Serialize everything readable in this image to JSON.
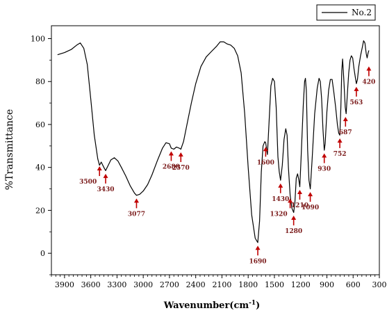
{
  "chart_data": {
    "type": "line",
    "xlabel": "Wavenumber(cm",
    "xlabel_sup": "-1",
    "xlabel_close": ")",
    "ylabel": "%Transmittance",
    "xlim": [
      4050,
      300
    ],
    "ylim": [
      -10,
      106
    ],
    "x_reversed": true,
    "x_ticks": [
      3900,
      3600,
      3300,
      3000,
      2700,
      2400,
      2100,
      1800,
      1500,
      1200,
      900,
      600,
      300
    ],
    "y_ticks": [
      0,
      20,
      40,
      60,
      80,
      100
    ],
    "grid": false,
    "legend": {
      "placement": "top-right",
      "entries": [
        "No.2"
      ]
    },
    "series": [
      {
        "name": "No.2",
        "color": "#000000",
        "points": [
          [
            3980,
            92.5
          ],
          [
            3900,
            93.5
          ],
          [
            3820,
            95
          ],
          [
            3760,
            97
          ],
          [
            3720,
            98
          ],
          [
            3680,
            95.5
          ],
          [
            3640,
            88
          ],
          [
            3600,
            72
          ],
          [
            3560,
            55
          ],
          [
            3520,
            44
          ],
          [
            3500,
            41
          ],
          [
            3480,
            42.5
          ],
          [
            3450,
            40
          ],
          [
            3430,
            38.5
          ],
          [
            3400,
            41
          ],
          [
            3370,
            43.5
          ],
          [
            3330,
            44.5
          ],
          [
            3290,
            43
          ],
          [
            3250,
            40
          ],
          [
            3200,
            36
          ],
          [
            3150,
            31.5
          ],
          [
            3100,
            28
          ],
          [
            3077,
            27
          ],
          [
            3040,
            27.5
          ],
          [
            3000,
            29
          ],
          [
            2950,
            32
          ],
          [
            2900,
            36.5
          ],
          [
            2840,
            43
          ],
          [
            2780,
            49
          ],
          [
            2740,
            51.5
          ],
          [
            2700,
            51
          ],
          [
            2680,
            49
          ],
          [
            2650,
            48.5
          ],
          [
            2620,
            49.5
          ],
          [
            2590,
            49
          ],
          [
            2570,
            48.5
          ],
          [
            2540,
            52
          ],
          [
            2500,
            60
          ],
          [
            2450,
            70
          ],
          [
            2400,
            79
          ],
          [
            2340,
            87
          ],
          [
            2280,
            91.5
          ],
          [
            2220,
            94
          ],
          [
            2160,
            96.5
          ],
          [
            2120,
            98.5
          ],
          [
            2080,
            98.5
          ],
          [
            2040,
            97.5
          ],
          [
            2000,
            97
          ],
          [
            1960,
            95.5
          ],
          [
            1920,
            92
          ],
          [
            1880,
            84
          ],
          [
            1840,
            65
          ],
          [
            1800,
            40
          ],
          [
            1760,
            18
          ],
          [
            1720,
            7
          ],
          [
            1690,
            5
          ],
          [
            1670,
            15
          ],
          [
            1650,
            38
          ],
          [
            1630,
            50
          ],
          [
            1610,
            52
          ],
          [
            1600,
            51.5
          ],
          [
            1580,
            46
          ],
          [
            1560,
            62
          ],
          [
            1540,
            78
          ],
          [
            1520,
            81.5
          ],
          [
            1500,
            80
          ],
          [
            1480,
            68
          ],
          [
            1460,
            45
          ],
          [
            1445,
            38
          ],
          [
            1430,
            34
          ],
          [
            1410,
            41
          ],
          [
            1390,
            53
          ],
          [
            1370,
            58
          ],
          [
            1355,
            55
          ],
          [
            1340,
            40
          ],
          [
            1320,
            27
          ],
          [
            1300,
            21
          ],
          [
            1280,
            19
          ],
          [
            1265,
            24
          ],
          [
            1250,
            35
          ],
          [
            1235,
            37
          ],
          [
            1220,
            34
          ],
          [
            1210,
            31
          ],
          [
            1195,
            44
          ],
          [
            1170,
            69
          ],
          [
            1155,
            80
          ],
          [
            1145,
            81.5
          ],
          [
            1135,
            76
          ],
          [
            1120,
            48
          ],
          [
            1105,
            34
          ],
          [
            1090,
            30
          ],
          [
            1070,
            43
          ],
          [
            1040,
            65
          ],
          [
            1010,
            77
          ],
          [
            990,
            81.5
          ],
          [
            975,
            80
          ],
          [
            960,
            72
          ],
          [
            945,
            58
          ],
          [
            930,
            48
          ],
          [
            920,
            51
          ],
          [
            900,
            66
          ],
          [
            880,
            76
          ],
          [
            860,
            81
          ],
          [
            840,
            81
          ],
          [
            820,
            75
          ],
          [
            800,
            68
          ],
          [
            780,
            60
          ],
          [
            765,
            56
          ],
          [
            752,
            55
          ],
          [
            740,
            68
          ],
          [
            730,
            85
          ],
          [
            720,
            90.5
          ],
          [
            705,
            80
          ],
          [
            690,
            68
          ],
          [
            680,
            65
          ],
          [
            665,
            75
          ],
          [
            650,
            84
          ],
          [
            635,
            90
          ],
          [
            620,
            92
          ],
          [
            605,
            91
          ],
          [
            590,
            86
          ],
          [
            575,
            82
          ],
          [
            563,
            79
          ],
          [
            550,
            81
          ],
          [
            535,
            87
          ],
          [
            515,
            92
          ],
          [
            495,
            96
          ],
          [
            480,
            99
          ],
          [
            465,
            98
          ],
          [
            450,
            93
          ],
          [
            440,
            91
          ],
          [
            430,
            93
          ],
          [
            420,
            94.5
          ]
        ]
      }
    ],
    "annotations": [
      {
        "label": "3500",
        "x": 3500,
        "y_tip": 41.5,
        "label_side": "below-left"
      },
      {
        "label": "3430",
        "x": 3430,
        "y_tip": 38,
        "label_side": "below"
      },
      {
        "label": "3077",
        "x": 3077,
        "y_tip": 26.5,
        "label_side": "below"
      },
      {
        "label": "2680",
        "x": 2680,
        "y_tip": 48.5,
        "label_side": "below"
      },
      {
        "label": "2570",
        "x": 2570,
        "y_tip": 48,
        "label_side": "below"
      },
      {
        "label": "1690",
        "x": 1690,
        "y_tip": 4.5,
        "label_side": "below"
      },
      {
        "label": "1600",
        "x": 1600,
        "y_tip": 50.5,
        "label_side": "below"
      },
      {
        "label": "1430",
        "x": 1430,
        "y_tip": 33.5,
        "label_side": "below"
      },
      {
        "label": "1320",
        "x": 1320,
        "y_tip": 26.5,
        "label_side": "below-left"
      },
      {
        "label": "1280",
        "x": 1280,
        "y_tip": 18.5,
        "label_side": "below"
      },
      {
        "label": "1210",
        "x": 1210,
        "y_tip": 30.5,
        "label_side": "below"
      },
      {
        "label": "1090",
        "x": 1090,
        "y_tip": 29.5,
        "label_side": "below"
      },
      {
        "label": "930",
        "x": 930,
        "y_tip": 47.5,
        "label_side": "below"
      },
      {
        "label": "752",
        "x": 752,
        "y_tip": 54.5,
        "label_side": "below"
      },
      {
        "label": "687",
        "x": 687,
        "y_tip": 64.5,
        "label_side": "below"
      },
      {
        "label": "563",
        "x": 563,
        "y_tip": 78.5,
        "label_side": "below"
      },
      {
        "label": "420",
        "x": 420,
        "y_tip": 88,
        "label_side": "below"
      }
    ],
    "arrow_color": "#c00000"
  }
}
